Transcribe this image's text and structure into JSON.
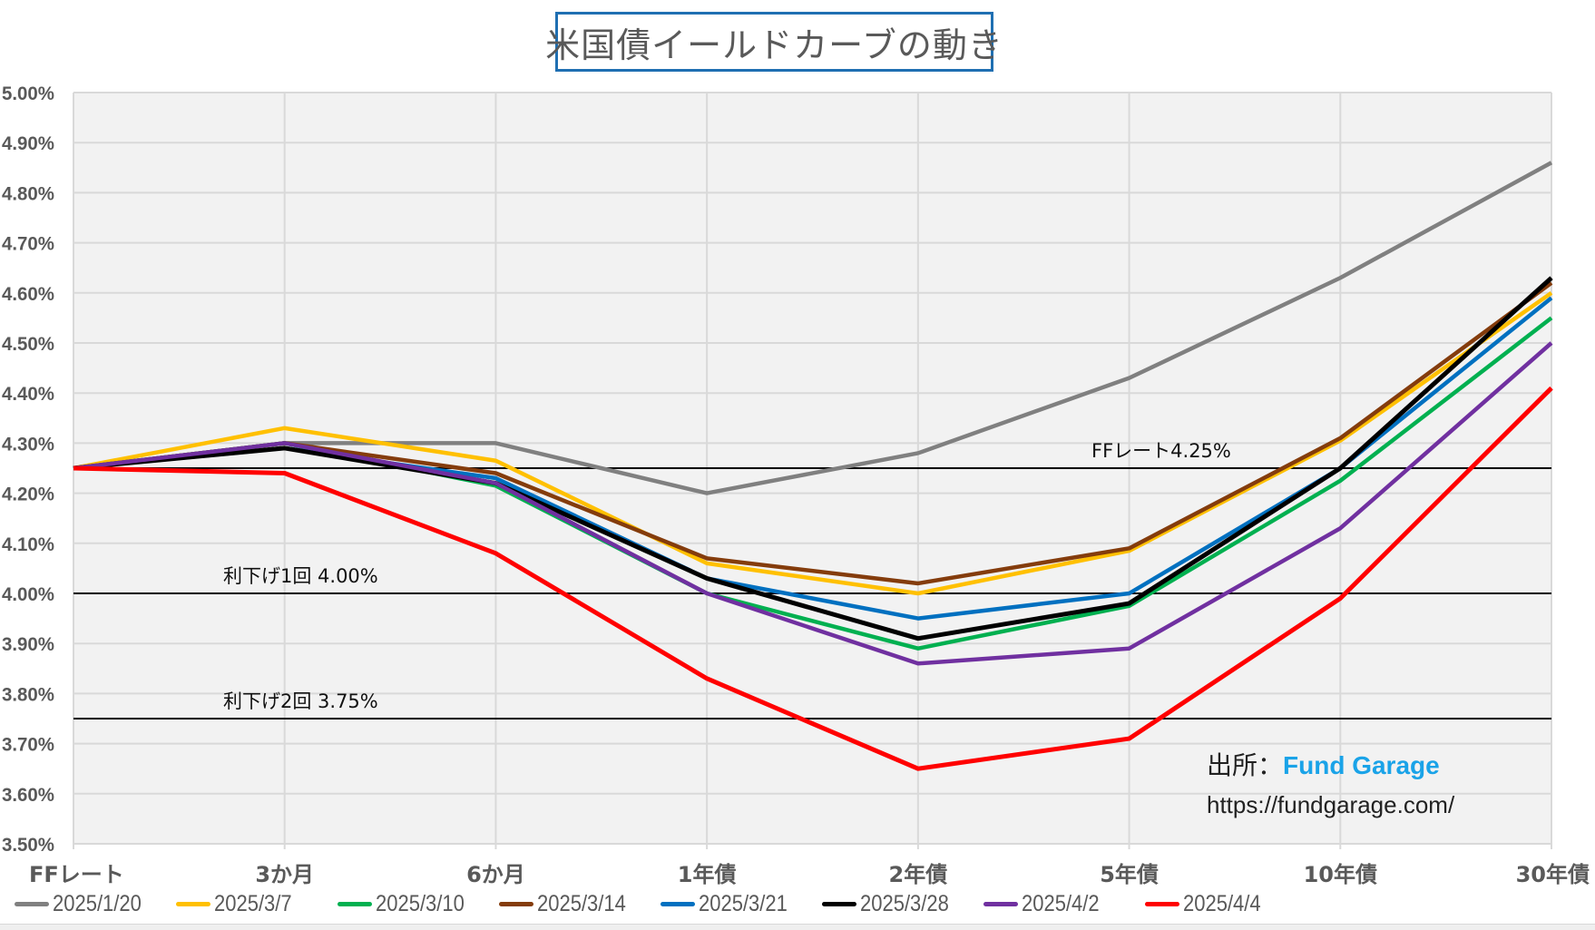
{
  "title": "米国債イールドカーブの動き",
  "source": {
    "prefix": "出所：",
    "brand": "Fund Garage",
    "url": "https://fundgarage.com/"
  },
  "colors": {
    "plot_bg": "#f2f2f2",
    "grid": "#d9d9d9",
    "axis_text": "#595959",
    "title_border": "#1f6fb2",
    "brand": "#1aa3e8"
  },
  "chart_data": {
    "type": "line",
    "title": "米国債イールドカーブの動き",
    "xlabel": "",
    "ylabel": "",
    "categories": [
      "FFレート",
      "3か月",
      "6か月",
      "1年債",
      "2年債",
      "5年債",
      "10年債",
      "30年債"
    ],
    "ylim": [
      3.5,
      5.0
    ],
    "yticks": [
      3.5,
      3.6,
      3.7,
      3.8,
      3.9,
      4.0,
      4.1,
      4.2,
      4.3,
      4.4,
      4.5,
      4.6,
      4.7,
      4.8,
      4.9,
      5.0
    ],
    "ytick_labels": [
      "3.50%",
      "3.60%",
      "3.70%",
      "3.80%",
      "3.90%",
      "4.00%",
      "4.10%",
      "4.20%",
      "4.30%",
      "4.40%",
      "4.50%",
      "4.60%",
      "4.70%",
      "4.80%",
      "4.90%",
      "5.00%"
    ],
    "grid": true,
    "legend_position": "bottom",
    "series": [
      {
        "name": "2025/1/20",
        "color": "#808080",
        "values": [
          4.25,
          4.3,
          4.3,
          4.2,
          4.28,
          4.43,
          4.63,
          4.86
        ]
      },
      {
        "name": "2025/3/7",
        "color": "#ffc000",
        "values": [
          4.25,
          4.33,
          4.265,
          4.06,
          4.0,
          4.085,
          4.305,
          4.6
        ]
      },
      {
        "name": "2025/3/10",
        "color": "#00b050",
        "values": [
          4.25,
          4.3,
          4.215,
          4.0,
          3.89,
          3.975,
          4.225,
          4.55
        ]
      },
      {
        "name": "2025/3/14",
        "color": "#843c0c",
        "values": [
          4.25,
          4.3,
          4.24,
          4.07,
          4.02,
          4.09,
          4.31,
          4.62
        ]
      },
      {
        "name": "2025/3/21",
        "color": "#0070c0",
        "values": [
          4.25,
          4.29,
          4.23,
          4.03,
          3.95,
          4.0,
          4.25,
          4.59
        ]
      },
      {
        "name": "2025/3/28",
        "color": "#000000",
        "values": [
          4.25,
          4.29,
          4.22,
          4.03,
          3.91,
          3.98,
          4.25,
          4.63
        ]
      },
      {
        "name": "2025/4/2",
        "color": "#7030a0",
        "values": [
          4.25,
          4.3,
          4.22,
          4.0,
          3.86,
          3.89,
          4.13,
          4.5
        ]
      },
      {
        "name": "2025/4/4",
        "color": "#ff0000",
        "values": [
          4.25,
          4.24,
          4.08,
          3.83,
          3.65,
          3.71,
          3.99,
          4.41
        ]
      }
    ],
    "reference_lines": [
      {
        "value": 4.25,
        "label": "FFレート4.25%"
      },
      {
        "value": 4.0,
        "label": "利下げ1回 4.00%"
      },
      {
        "value": 3.75,
        "label": "利下げ2回 3.75%"
      }
    ]
  }
}
